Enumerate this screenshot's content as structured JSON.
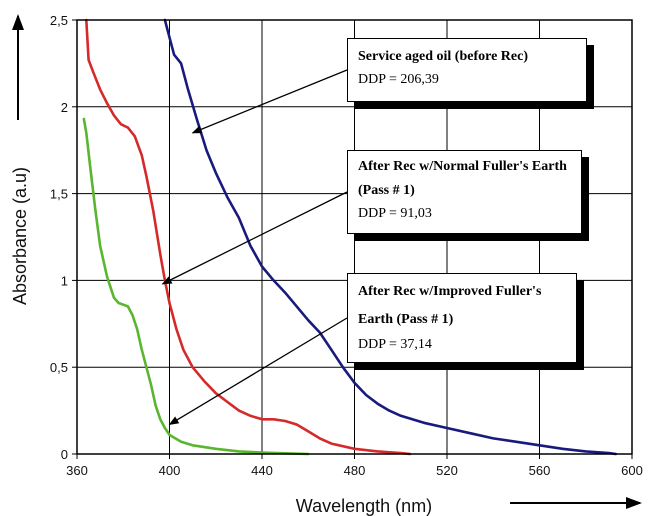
{
  "chart_data": {
    "type": "line",
    "xlabel": "Wavelength (nm)",
    "ylabel": "Absorbance (a.u)",
    "xlim": [
      360,
      600
    ],
    "ylim": [
      0,
      2.5
    ],
    "x_ticks": [
      "360",
      "400",
      "440",
      "480",
      "520",
      "560",
      "600"
    ],
    "y_ticks": [
      "0",
      "0,5",
      "1",
      "1,5",
      "2",
      "2,5"
    ],
    "grid": true,
    "series": [
      {
        "name": "Service aged oil (before Rec)",
        "color": "#1a1a7e",
        "points": [
          [
            398,
            2.5
          ],
          [
            400,
            2.4
          ],
          [
            402,
            2.3
          ],
          [
            405,
            2.25
          ],
          [
            408,
            2.1
          ],
          [
            412,
            1.92
          ],
          [
            416,
            1.75
          ],
          [
            420,
            1.62
          ],
          [
            425,
            1.48
          ],
          [
            430,
            1.36
          ],
          [
            435,
            1.2
          ],
          [
            440,
            1.08
          ],
          [
            445,
            1.0
          ],
          [
            450,
            0.93
          ],
          [
            455,
            0.85
          ],
          [
            460,
            0.77
          ],
          [
            465,
            0.7
          ],
          [
            470,
            0.6
          ],
          [
            475,
            0.5
          ],
          [
            480,
            0.41
          ],
          [
            485,
            0.34
          ],
          [
            490,
            0.29
          ],
          [
            495,
            0.25
          ],
          [
            500,
            0.22
          ],
          [
            510,
            0.18
          ],
          [
            520,
            0.15
          ],
          [
            530,
            0.12
          ],
          [
            540,
            0.09
          ],
          [
            550,
            0.07
          ],
          [
            560,
            0.05
          ],
          [
            570,
            0.03
          ],
          [
            580,
            0.015
          ],
          [
            590,
            0.005
          ],
          [
            593,
            0
          ]
        ]
      },
      {
        "name": "After Rec w/Normal Fuller's Earth (Pass # 1)",
        "color": "#d42a2a",
        "points": [
          [
            364,
            2.5
          ],
          [
            365,
            2.27
          ],
          [
            367,
            2.2
          ],
          [
            370,
            2.1
          ],
          [
            373,
            2.02
          ],
          [
            376,
            1.95
          ],
          [
            379,
            1.9
          ],
          [
            382,
            1.88
          ],
          [
            385,
            1.83
          ],
          [
            388,
            1.72
          ],
          [
            390,
            1.6
          ],
          [
            393,
            1.4
          ],
          [
            396,
            1.15
          ],
          [
            398,
            1.0
          ],
          [
            400,
            0.87
          ],
          [
            403,
            0.72
          ],
          [
            406,
            0.6
          ],
          [
            410,
            0.5
          ],
          [
            415,
            0.42
          ],
          [
            420,
            0.35
          ],
          [
            425,
            0.3
          ],
          [
            430,
            0.25
          ],
          [
            435,
            0.22
          ],
          [
            440,
            0.2
          ],
          [
            445,
            0.2
          ],
          [
            450,
            0.19
          ],
          [
            455,
            0.17
          ],
          [
            460,
            0.13
          ],
          [
            465,
            0.09
          ],
          [
            470,
            0.06
          ],
          [
            480,
            0.03
          ],
          [
            490,
            0.015
          ],
          [
            500,
            0.005
          ],
          [
            504,
            0
          ]
        ]
      },
      {
        "name": "After Rec w/Improved Fuller's Earth (Pass # 1)",
        "color": "#5ab52f",
        "points": [
          [
            363,
            1.93
          ],
          [
            364,
            1.85
          ],
          [
            366,
            1.62
          ],
          [
            368,
            1.4
          ],
          [
            370,
            1.2
          ],
          [
            373,
            1.02
          ],
          [
            376,
            0.9
          ],
          [
            378,
            0.87
          ],
          [
            380,
            0.86
          ],
          [
            382,
            0.85
          ],
          [
            384,
            0.8
          ],
          [
            386,
            0.72
          ],
          [
            388,
            0.6
          ],
          [
            390,
            0.5
          ],
          [
            392,
            0.4
          ],
          [
            394,
            0.28
          ],
          [
            396,
            0.2
          ],
          [
            398,
            0.15
          ],
          [
            400,
            0.11
          ],
          [
            405,
            0.07
          ],
          [
            410,
            0.05
          ],
          [
            420,
            0.03
          ],
          [
            430,
            0.015
          ],
          [
            440,
            0.008
          ],
          [
            450,
            0.004
          ],
          [
            460,
            0
          ]
        ]
      }
    ],
    "annotations": [
      {
        "title": "Service aged oil (before Rec)",
        "ddp": "DDP = 206,39",
        "arrow_target": [
          410,
          1.85
        ]
      },
      {
        "title": "After Rec w/Normal Fuller's Earth (Pass # 1)",
        "ddp": "DDP = 91,03",
        "arrow_target": [
          397,
          0.98
        ]
      },
      {
        "title": "After Rec w/Improved Fuller's Earth (Pass # 1)",
        "ddp": "DDP = 37,14",
        "arrow_target": [
          400,
          0.17
        ]
      }
    ]
  }
}
